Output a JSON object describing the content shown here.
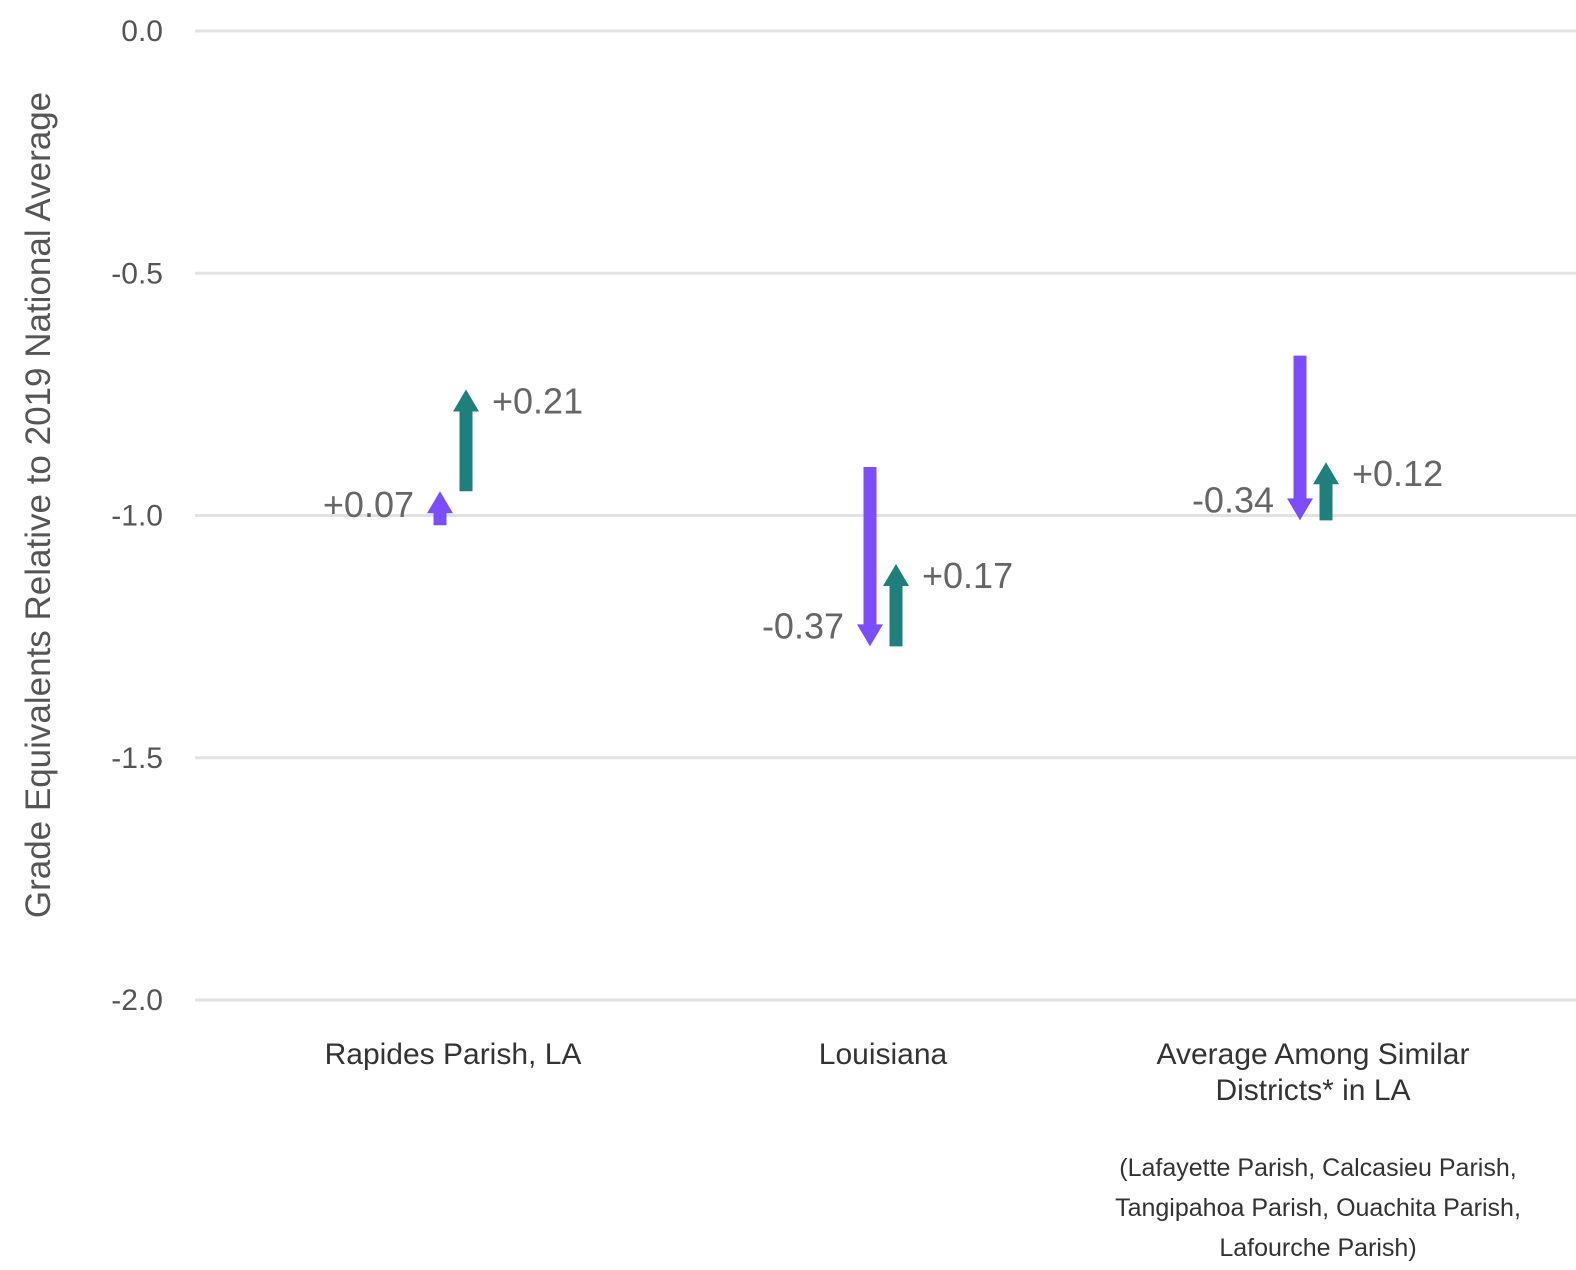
{
  "chart_data": {
    "type": "arrow",
    "title": "",
    "ylabel": "Grade Equivalents Relative to 2019 National Average",
    "xlabel": "",
    "ylim": [
      -2.0,
      0.0
    ],
    "yticks": [
      0.0,
      -0.5,
      -1.0,
      -1.5,
      -2.0
    ],
    "ytick_labels": [
      "0.0",
      "-0.5",
      "-1.0",
      "-1.5",
      "-2.0"
    ],
    "grid": true,
    "colors": {
      "change_a": "#7c4dff",
      "change_b": "#1e7f7c"
    },
    "categories": [
      {
        "label_lines": [
          "Rapides Parish, LA"
        ],
        "note_lines": [],
        "changes": [
          {
            "from": -1.02,
            "to": -0.95,
            "label": "+0.07",
            "color_key": "change_a"
          },
          {
            "from": -0.95,
            "to": -0.74,
            "label": "+0.21",
            "color_key": "change_b"
          }
        ]
      },
      {
        "label_lines": [
          "Louisiana"
        ],
        "note_lines": [],
        "changes": [
          {
            "from": -0.9,
            "to": -1.27,
            "label": "-0.37",
            "color_key": "change_a"
          },
          {
            "from": -1.27,
            "to": -1.1,
            "label": "+0.17",
            "color_key": "change_b"
          }
        ]
      },
      {
        "label_lines": [
          "Average Among Similar",
          "Districts* in LA"
        ],
        "note_lines": [
          "(Lafayette Parish, Calcasieu Parish,",
          "Tangipahoa Parish, Ouachita Parish,",
          "Lafourche Parish)"
        ],
        "changes": [
          {
            "from": -0.67,
            "to": -1.01,
            "label": "-0.34",
            "color_key": "change_a"
          },
          {
            "from": -1.01,
            "to": -0.89,
            "label": "+0.12",
            "color_key": "change_b"
          }
        ]
      }
    ]
  }
}
